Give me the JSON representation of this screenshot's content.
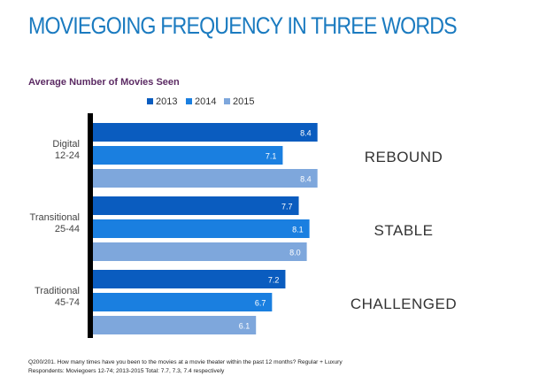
{
  "chart_data": {
    "type": "bar",
    "orientation": "horizontal",
    "title": "MOVIEGOING FREQUENCY IN THREE WORDS",
    "subtitle": "Average Number of Movies Seen",
    "categories": [
      {
        "line1": "Digital",
        "line2": "12-24",
        "word": "REBOUND"
      },
      {
        "line1": "Transitional",
        "line2": "25-44",
        "word": "STABLE"
      },
      {
        "line1": "Traditional",
        "line2": "45-74",
        "word": "CHALLENGED"
      }
    ],
    "series": [
      {
        "name": "2013",
        "color": "#0a5cbf",
        "values": [
          8.4,
          7.7,
          7.2
        ],
        "labels": [
          "8.4",
          "7.7",
          "7.2"
        ]
      },
      {
        "name": "2014",
        "color": "#1a7fe0",
        "values": [
          7.1,
          8.1,
          6.7
        ],
        "labels": [
          "7.1",
          "8.1",
          "6.7"
        ]
      },
      {
        "name": "2015",
        "color": "#7ea7dc",
        "values": [
          8.4,
          8.0,
          6.1
        ],
        "labels": [
          "8.4",
          "8.0",
          "6.1"
        ]
      }
    ],
    "xlim": [
      0,
      10
    ],
    "legend_position": "top",
    "grid": false
  },
  "footnote": {
    "line1": "Q200/201. How many times have you been to the movies at a movie theater within the past 12 months? Regular + Luxury",
    "line2": "Respondents: Moviegoers 12-74; 2013-2015 Total: 7.7, 7.3, 7.4 respectively"
  }
}
